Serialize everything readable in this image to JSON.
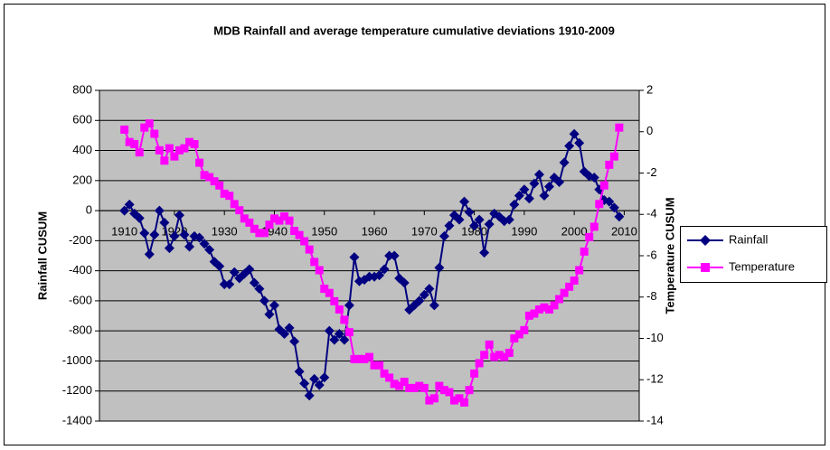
{
  "chart_data": {
    "type": "line",
    "title": "MDB Rainfall and average temperature cumulative deviations 1910-2009",
    "y_label": "Rainfall CUSUM",
    "y2_label": "Temperature CUSUM",
    "x": [
      1910,
      1911,
      1912,
      1913,
      1914,
      1915,
      1916,
      1917,
      1918,
      1919,
      1920,
      1921,
      1922,
      1923,
      1924,
      1925,
      1926,
      1927,
      1928,
      1929,
      1930,
      1931,
      1932,
      1933,
      1934,
      1935,
      1936,
      1937,
      1938,
      1939,
      1940,
      1941,
      1942,
      1943,
      1944,
      1945,
      1946,
      1947,
      1948,
      1949,
      1950,
      1951,
      1952,
      1953,
      1954,
      1955,
      1956,
      1957,
      1958,
      1959,
      1960,
      1961,
      1962,
      1963,
      1964,
      1965,
      1966,
      1967,
      1968,
      1969,
      1970,
      1971,
      1972,
      1973,
      1974,
      1975,
      1976,
      1977,
      1978,
      1979,
      1980,
      1981,
      1982,
      1983,
      1984,
      1985,
      1986,
      1987,
      1988,
      1989,
      1990,
      1991,
      1992,
      1993,
      1994,
      1995,
      1996,
      1997,
      1998,
      1999,
      2000,
      2001,
      2002,
      2003,
      2004,
      2005,
      2006,
      2007,
      2008,
      2009
    ],
    "series": [
      {
        "name": "Rainfall",
        "color": "#000080",
        "marker": "diamond",
        "values": [
          0,
          40,
          -20,
          -50,
          -150,
          -290,
          -160,
          0,
          -80,
          -250,
          -170,
          -30,
          -160,
          -240,
          -170,
          -180,
          -220,
          -260,
          -340,
          -370,
          -490,
          -490,
          -410,
          -450,
          -420,
          -390,
          -480,
          -520,
          -600,
          -690,
          -630,
          -790,
          -820,
          -780,
          -870,
          -1070,
          -1150,
          -1230,
          -1120,
          -1160,
          -1110,
          -800,
          -860,
          -820,
          -860,
          -630,
          -310,
          -470,
          -460,
          -440,
          -440,
          -430,
          -390,
          -300,
          -300,
          -450,
          -480,
          -660,
          -630,
          -600,
          -560,
          -520,
          -630,
          -380,
          -170,
          -100,
          -30,
          -60,
          60,
          -10,
          -100,
          -60,
          -280,
          -90,
          -20,
          -40,
          -70,
          -60,
          40,
          100,
          140,
          80,
          180,
          240,
          100,
          160,
          220,
          190,
          320,
          430,
          510,
          450,
          260,
          230,
          220,
          140,
          70,
          60,
          20,
          -40
        ]
      },
      {
        "name": "Temperature",
        "color": "#FF00FF",
        "marker": "square",
        "axis": "y2",
        "values": [
          0.1,
          -0.5,
          -0.6,
          -1.0,
          0.2,
          0.4,
          -0.1,
          -0.9,
          -1.4,
          -0.8,
          -1.2,
          -0.9,
          -0.8,
          -0.5,
          -0.6,
          -1.5,
          -2.1,
          -2.2,
          -2.4,
          -2.6,
          -3.0,
          -3.1,
          -3.5,
          -3.8,
          -4.2,
          -4.4,
          -4.7,
          -4.9,
          -4.9,
          -4.5,
          -4.2,
          -4.3,
          -4.1,
          -4.3,
          -4.8,
          -5.0,
          -5.3,
          -5.7,
          -6.3,
          -6.7,
          -7.6,
          -7.8,
          -8.2,
          -8.6,
          -9.1,
          -9.7,
          -11.0,
          -11.0,
          -11.0,
          -10.9,
          -11.3,
          -11.3,
          -11.7,
          -11.9,
          -12.2,
          -12.3,
          -12.1,
          -12.4,
          -12.4,
          -12.3,
          -12.4,
          -13.0,
          -12.9,
          -12.3,
          -12.5,
          -12.6,
          -13.0,
          -12.9,
          -13.1,
          -12.5,
          -11.7,
          -11.2,
          -10.8,
          -10.3,
          -10.9,
          -10.8,
          -10.9,
          -10.7,
          -10.0,
          -9.8,
          -9.6,
          -8.9,
          -8.8,
          -8.6,
          -8.5,
          -8.6,
          -8.4,
          -8.1,
          -7.8,
          -7.5,
          -7.2,
          -6.7,
          -5.8,
          -5.1,
          -4.6,
          -3.5,
          -2.6,
          -1.6,
          -1.2,
          0.2
        ]
      }
    ],
    "xlim": [
      1905,
      2013
    ],
    "xticks": [
      1910,
      1920,
      1930,
      1940,
      1950,
      1960,
      1970,
      1980,
      1990,
      2000,
      2010
    ],
    "ylim": [
      -1400,
      800
    ],
    "yticks": [
      800,
      600,
      400,
      200,
      0,
      -200,
      -400,
      -600,
      -800,
      -1000,
      -1200,
      -1400
    ],
    "y2lim": [
      -14,
      2
    ],
    "y2ticks": [
      2,
      0,
      -2,
      -4,
      -6,
      -8,
      -10,
      -12,
      -14
    ],
    "grid": true,
    "plot_background": "#C0C0C0",
    "legend": "right"
  }
}
